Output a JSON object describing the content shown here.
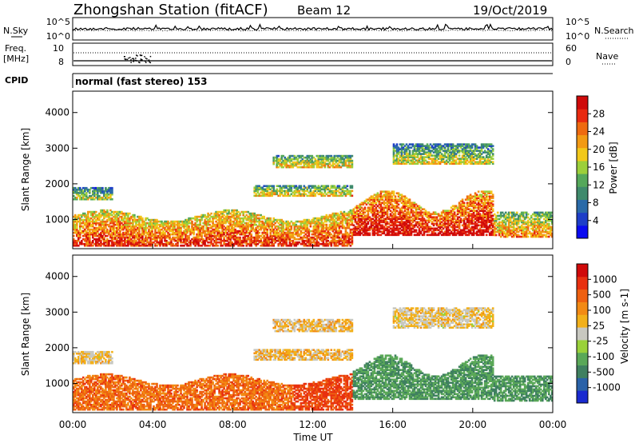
{
  "chart_data": {
    "type": "heatmap",
    "title": "Zhongshan Station (fitACF)",
    "beam": "Beam 12",
    "date": "19/Oct/2019",
    "xlabel": "Time UT",
    "x_ticks": [
      "00:00",
      "04:00",
      "08:00",
      "12:00",
      "16:00",
      "20:00",
      "00:00"
    ],
    "x_range_hours": [
      0,
      24
    ],
    "noise_panel": {
      "left_label": "N.Sky",
      "right_label": "N.Search",
      "left_ticks": [
        "10^5",
        "10^0"
      ],
      "right_ticks": [
        "10^5",
        "10^0"
      ]
    },
    "freq_panel": {
      "left_label_1": "Freq.",
      "left_label_2": "[MHz]",
      "left_ticks": [
        "10",
        "8"
      ],
      "right_ticks": [
        "60",
        "0"
      ],
      "right_label": "Nave",
      "cpid_label": "CPID",
      "cpid_text": "normal (fast stereo) 153"
    },
    "ylabel": "Slant Range [km]",
    "y_ticks": [
      "4000",
      "3000",
      "2000",
      "1000"
    ],
    "ylim_km": [
      180,
      4600
    ],
    "power_panel": {
      "colorbar_label": "Power [dB]",
      "colorbar_ticks": [
        "28",
        "24",
        "20",
        "16",
        "12",
        "8",
        "4"
      ],
      "colorbar_colors": [
        "#0a0af0",
        "#1e3ec8",
        "#2a6aa8",
        "#3f8a6c",
        "#55a85a",
        "#9ccf3a",
        "#f2c81a",
        "#f29a14",
        "#ee6a10",
        "#e82a10",
        "#cf0a0a"
      ]
    },
    "velocity_panel": {
      "colorbar_label": "Velocity [m s-1]",
      "colorbar_ticks": [
        "1000",
        "500",
        "100",
        "25",
        "-25",
        "-100",
        "-500",
        "-1000"
      ],
      "colorbar_colors": [
        "#1a2ad0",
        "#2a62a8",
        "#3f8060",
        "#5aa858",
        "#9ad13a",
        "#c8c8c0",
        "#f2b01a",
        "#f28a14",
        "#ee6010",
        "#e83010",
        "#d00a0a"
      ]
    }
  }
}
